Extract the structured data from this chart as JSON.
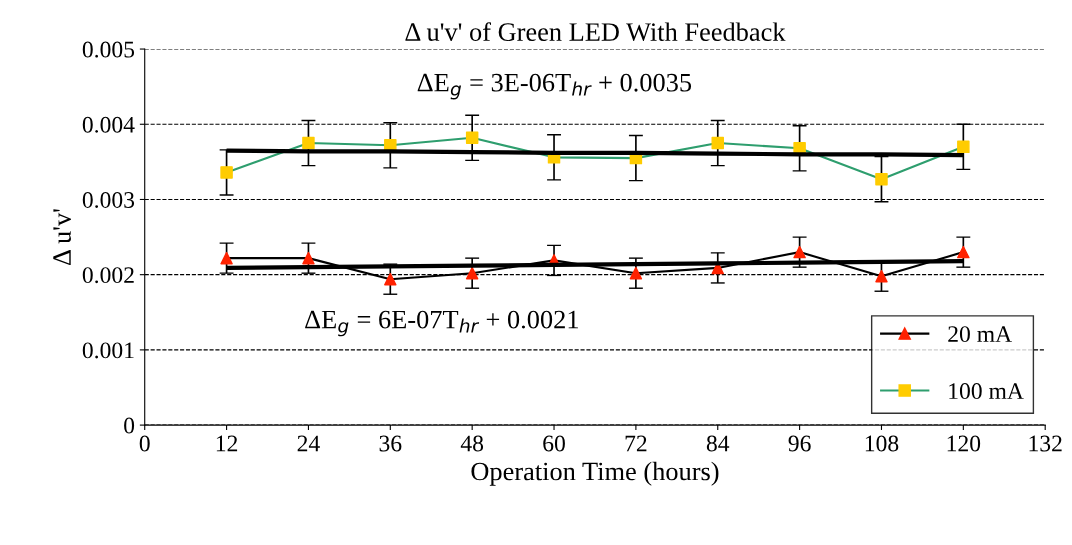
{
  "chart_data": {
    "type": "line",
    "title": "Δ u'v' of Green LED With Feedback",
    "xlabel": "Operation Time (hours)",
    "ylabel": "Δ u'v'",
    "x": [
      12,
      24,
      36,
      48,
      60,
      72,
      84,
      96,
      108,
      120
    ],
    "series": [
      {
        "name": "20 mA",
        "color": "#000000",
        "marker": "triangle",
        "colors": [
          "#ff2200",
          "#ff2200",
          "#ff2200",
          "#ff2200",
          "#ff2200",
          "#ff2200",
          "#ff2200",
          "#ff2200",
          "#ff2200",
          "#ff2200"
        ],
        "values": [
          0.00222,
          0.00222,
          0.00194,
          0.00202,
          0.00219,
          0.00202,
          0.00209,
          0.0023,
          0.00198,
          0.0023
        ],
        "errors": [
          0.0002,
          0.0002,
          0.0002,
          0.0002,
          0.0002,
          0.0002,
          0.0002,
          0.0002,
          0.0002,
          0.0002
        ]
      },
      {
        "name": "100 mA",
        "color": "#2e9e6e",
        "marker": "square",
        "colors": [
          "#ffcc00",
          "#ffcc00",
          "#ffcc00",
          "#ffcc00",
          "#ffcc00",
          "#ffcc00",
          "#ffcc00",
          "#ffcc00",
          "#ffcc00",
          "#ffcc00"
        ],
        "values": [
          0.00336,
          0.00375,
          0.00372,
          0.00382,
          0.00356,
          0.00355,
          0.00375,
          0.00368,
          0.00327,
          0.0037
        ],
        "errors": [
          0.0003,
          0.0003,
          0.0003,
          0.0003,
          0.0003,
          0.0003,
          0.0003,
          0.0003,
          0.0003,
          0.0003
        ]
      },
      {
        "color": "#000000",
        "marker": "none",
        "values": [
          0.00365,
          0.00364,
          0.00364,
          0.00363,
          0.00362,
          0.00362,
          0.00361,
          0.0036,
          0.0036,
          0.00359
        ]
      },
      {
        "color": "#000000",
        "marker": "none",
        "values": [
          0.00209,
          0.0021,
          0.00211,
          0.00212,
          0.00213,
          0.00214,
          0.00215,
          0.00216,
          0.00217,
          0.00218
        ]
      }
    ],
    "annotations": [
      "ΔE$_{g}$ = 3E-06T$_{hr}$ + 0.0035",
      "ΔE$_{g}$ = 6E-07T$_{hr}$ + 0.0021"
    ],
    "xlim": [
      0,
      132
    ],
    "xticks": [
      0,
      12,
      24,
      36,
      48,
      60,
      72,
      84,
      96,
      108,
      120,
      132
    ],
    "ylim": [
      0,
      0.005
    ],
    "yticks": [
      0,
      0.001,
      0.002,
      0.003,
      0.004,
      0.005
    ],
    "grid": "y",
    "legend": "bottom right",
    "line_style": "solid"
  }
}
